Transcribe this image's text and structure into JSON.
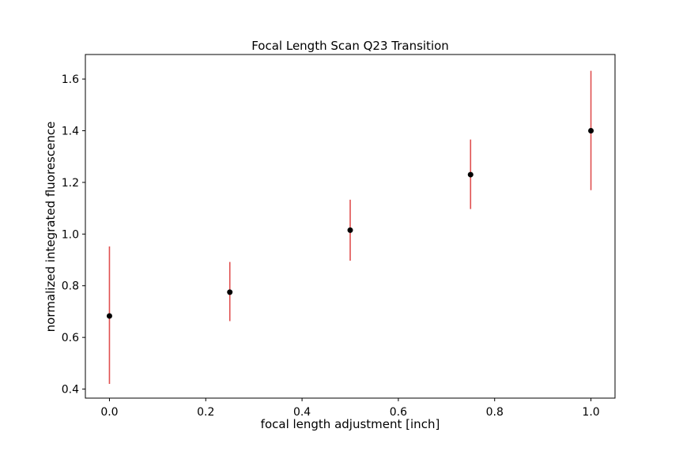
{
  "chart_data": {
    "type": "scatter",
    "title": "Focal Length Scan Q23 Transition",
    "xlabel": "focal length adjustment [inch]",
    "ylabel": "normalized integrated fluorescence",
    "xlim": [
      -0.05,
      1.05
    ],
    "ylim": [
      0.365,
      1.695
    ],
    "x_ticks": [
      "0.0",
      "0.2",
      "0.4",
      "0.6",
      "0.8",
      "1.0"
    ],
    "y_ticks": [
      "0.4",
      "0.6",
      "0.8",
      "1.0",
      "1.2",
      "1.4",
      "1.6"
    ],
    "grid": false,
    "series": [
      {
        "x": [
          0.0,
          0.25,
          0.5,
          0.75,
          1.0
        ],
        "y": [
          0.683,
          0.775,
          1.015,
          1.23,
          1.4
        ],
        "yerr_low": [
          0.42,
          0.663,
          0.897,
          1.097,
          1.17
        ],
        "yerr_high": [
          0.952,
          0.892,
          1.133,
          1.366,
          1.632
        ]
      }
    ],
    "colors": {
      "marker": "#000000",
      "errorbar": "#e05050",
      "axes": "#000000"
    }
  }
}
